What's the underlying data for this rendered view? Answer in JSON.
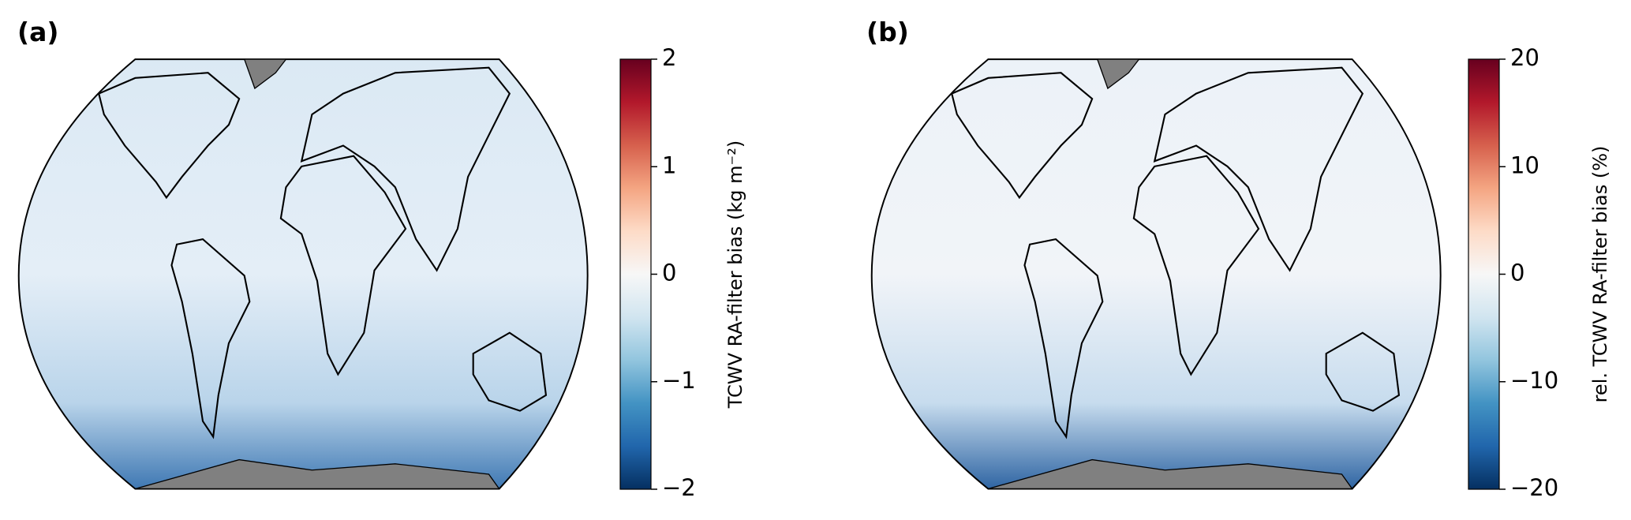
{
  "chart_data": [
    {
      "type": "map",
      "panel_label": "(a)",
      "colorbar_label": "TCWV RA-filter bias (kg m⁻²)",
      "ylim": [
        -2,
        2
      ],
      "yticks": [
        {
          "value": -2,
          "label": "−2"
        },
        {
          "value": -1,
          "label": "−1"
        },
        0,
        1,
        2
      ]
    },
    {
      "type": "map",
      "panel_label": "(b)",
      "colorbar_label": "rel. TCWV RA-filter bias (%)",
      "ylim": [
        -20,
        20
      ],
      "yticks": [
        {
          "value": -20,
          "label": "−20"
        },
        {
          "value": -10,
          "label": "−10"
        },
        0,
        10,
        20
      ]
    }
  ]
}
